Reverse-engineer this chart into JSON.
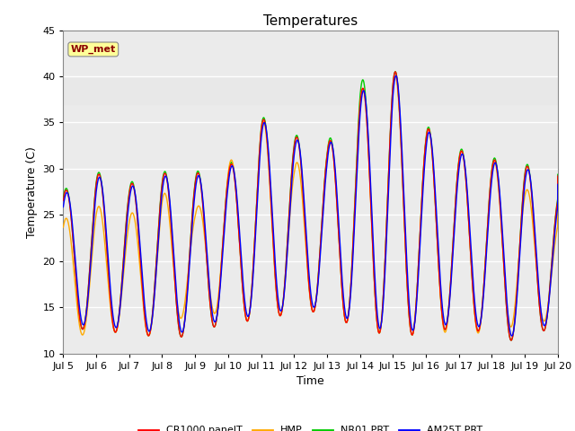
{
  "title": "Temperatures",
  "xlabel": "Time",
  "ylabel": "Temperature (C)",
  "ylim": [
    10,
    45
  ],
  "xlim_days": [
    5,
    20
  ],
  "x_ticks": [
    5,
    6,
    7,
    8,
    9,
    10,
    11,
    12,
    13,
    14,
    15,
    16,
    17,
    18,
    19,
    20
  ],
  "x_tick_labels": [
    "Jul 5",
    "Jul 6",
    "Jul 7",
    "Jul 8",
    "Jul 9",
    "Jul 10",
    "Jul 11",
    "Jul 12",
    "Jul 13",
    "Jul 14",
    "Jul 15",
    "Jul 16",
    "Jul 17",
    "Jul 18",
    "Jul 19",
    "Jul 20"
  ],
  "series_colors": {
    "CR1000 panelT": "#ff0000",
    "HMP": "#ffaa00",
    "NR01 PRT": "#00cc00",
    "AM25T PRT": "#0000ff"
  },
  "shaded_band": [
    37.0,
    40.0
  ],
  "shaded_color": "#e8e8e8",
  "wp_met_label": "WP_met",
  "wp_met_text_color": "#8b0000",
  "wp_met_bg": "#ffff99",
  "wp_met_border": "#aaaaaa",
  "grid_color": "#cccccc",
  "bg_color": "#ebebeb",
  "day_peaks": [
    27.5,
    29.5,
    28.3,
    29.5,
    29.5,
    30.0,
    35.5,
    33.5,
    32.5,
    38.5,
    41.0,
    34.5,
    32.0,
    31.0,
    30.5,
    27.5
  ],
  "day_mins": [
    13.5,
    12.0,
    12.5,
    11.5,
    12.0,
    13.5,
    13.5,
    14.5,
    14.5,
    12.5,
    12.0,
    12.0,
    13.0,
    12.0,
    11.0,
    13.5
  ],
  "hmp_peaks": [
    24.5,
    26.0,
    25.0,
    27.5,
    25.5,
    30.5,
    35.5,
    30.5,
    32.5,
    38.5,
    40.5,
    34.5,
    32.0,
    31.0,
    28.0,
    24.5
  ],
  "hmp_mins": [
    12.0,
    12.0,
    12.5,
    11.5,
    15.5,
    13.5,
    13.5,
    14.5,
    14.5,
    12.5,
    12.0,
    12.0,
    12.5,
    12.0,
    13.5,
    13.5
  ],
  "samples_per_day": 288,
  "line_width": 1.0,
  "figsize": [
    6.4,
    4.8
  ],
  "dpi": 100
}
